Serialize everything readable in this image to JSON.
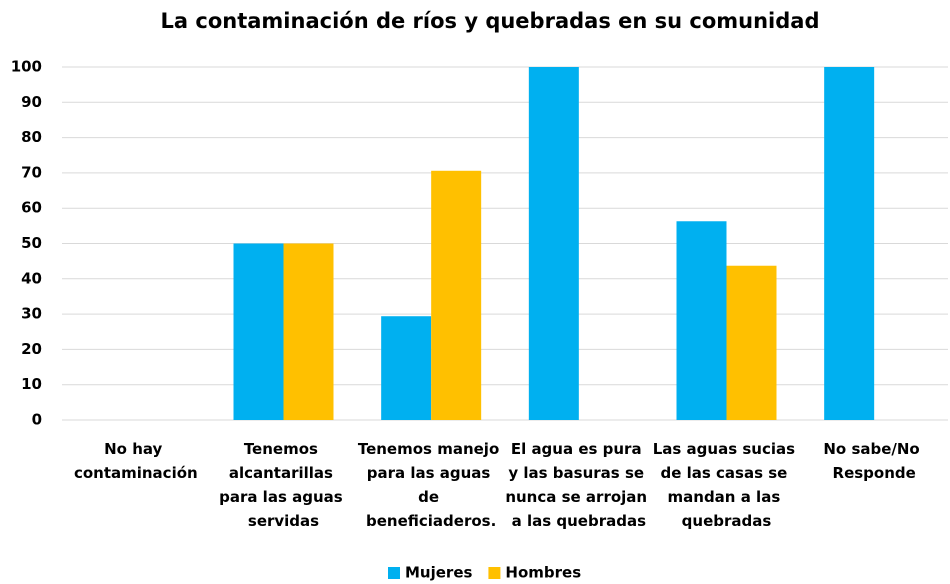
{
  "chart_data": {
    "type": "bar",
    "title": "La contaminación de ríos y quebradas en su comunidad",
    "categories": [
      "No hay contaminación",
      "Tenemos alcantarillas para las aguas servidas",
      "Tenemos manejo para las aguas de beneficiaderos.",
      "El agua es pura y las basuras se nunca se arrojan a las quebradas",
      "Las aguas sucias de las casas se mandan a las quebradas",
      "No sabe/No Responde"
    ],
    "series": [
      {
        "name": "Mujeres",
        "color": "#00b0f0",
        "values": [
          0,
          50,
          29.4,
          100,
          56.3,
          100
        ]
      },
      {
        "name": "Hombres",
        "color": "#ffc000",
        "values": [
          0,
          50,
          70.6,
          0,
          43.7,
          0
        ]
      }
    ],
    "ylim": [
      0,
      100
    ],
    "yticks": [
      0,
      10,
      20,
      30,
      40,
      50,
      60,
      70,
      80,
      90,
      100
    ],
    "grid": true,
    "legend": "bottom"
  }
}
